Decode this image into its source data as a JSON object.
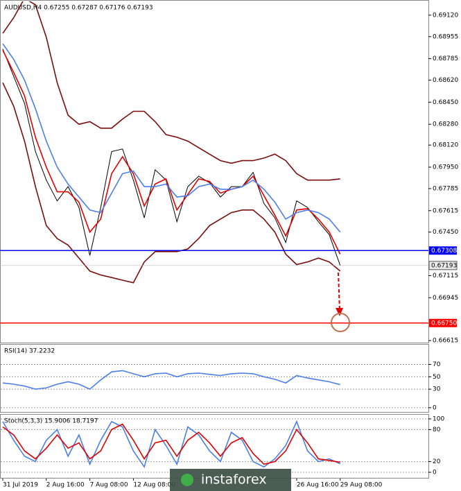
{
  "watermark": "instaforex",
  "chart_data": [
    {
      "type": "line",
      "title": "AUDUSD,H4 0.67255 0.67287 0.67176 0.67193",
      "ylim": [
        0.66594,
        0.69226
      ],
      "yticks": [
        {
          "value": 0.6912,
          "label": "0.69120"
        },
        {
          "value": 0.68955,
          "label": "0.68955"
        },
        {
          "value": 0.68785,
          "label": "0.68785"
        },
        {
          "value": 0.6862,
          "label": "0.68620"
        },
        {
          "value": 0.6845,
          "label": "0.68450"
        },
        {
          "value": 0.6828,
          "label": "0.68280"
        },
        {
          "value": 0.6812,
          "label": "0.68120"
        },
        {
          "value": 0.6795,
          "label": "0.67950"
        },
        {
          "value": 0.67785,
          "label": "0.67785"
        },
        {
          "value": 0.67615,
          "label": "0.67615"
        },
        {
          "value": 0.6745,
          "label": "0.67450"
        },
        {
          "value": 0.67115,
          "label": "0.67115"
        },
        {
          "value": 0.66945,
          "label": "0.66945"
        },
        {
          "value": 0.66615,
          "label": "0.66615"
        }
      ],
      "grid": false,
      "levels": [
        {
          "value": 0.67308,
          "color": "#0000ff"
        },
        {
          "value": 0.6675,
          "label": "0.66750",
          "color": "#ff0000"
        }
      ],
      "current_price": 0.67193,
      "series": [
        {
          "color": "#000000",
          "values": [
            0.6886,
            0.6865,
            0.6844,
            0.6807,
            0.6785,
            0.6769,
            0.678,
            0.6764,
            0.6727,
            0.6764,
            0.6807,
            0.6809,
            0.6785,
            0.6756,
            0.6793,
            0.6785,
            0.6753,
            0.678,
            0.6788,
            0.6783,
            0.6772,
            0.678,
            0.678,
            0.6791,
            0.6767,
            0.6756,
            0.6737,
            0.6769,
            0.6764,
            0.6753,
            0.6743,
            0.67193
          ]
        },
        {
          "color": "#e00000",
          "values": [
            0.6885,
            0.6868,
            0.685,
            0.6818,
            0.6795,
            0.6776,
            0.6776,
            0.6768,
            0.6745,
            0.6755,
            0.679,
            0.6803,
            0.679,
            0.6765,
            0.6782,
            0.6786,
            0.6762,
            0.6774,
            0.6786,
            0.6784,
            0.6775,
            0.6778,
            0.678,
            0.6788,
            0.6773,
            0.6758,
            0.6742,
            0.6762,
            0.6763,
            0.6755,
            0.6745,
            0.6728
          ]
        },
        {
          "color": "#4a7ee8",
          "values": [
            0.689,
            0.6878,
            0.6862,
            0.684,
            0.6815,
            0.6795,
            0.6782,
            0.6772,
            0.6762,
            0.676,
            0.6775,
            0.679,
            0.6792,
            0.678,
            0.678,
            0.6782,
            0.6772,
            0.6773,
            0.678,
            0.6782,
            0.6778,
            0.6778,
            0.678,
            0.6785,
            0.6778,
            0.6768,
            0.6755,
            0.676,
            0.6762,
            0.676,
            0.6755,
            0.6745
          ]
        },
        {
          "color": "#7a0c0c",
          "values": [
            0.6898,
            0.691,
            0.6925,
            0.692,
            0.6895,
            0.686,
            0.6835,
            0.6828,
            0.683,
            0.6825,
            0.6825,
            0.6832,
            0.6838,
            0.6838,
            0.683,
            0.682,
            0.6818,
            0.6815,
            0.681,
            0.6805,
            0.68,
            0.6798,
            0.68,
            0.68,
            0.6802,
            0.6805,
            0.68,
            0.679,
            0.6785,
            0.6785,
            0.6785,
            0.6786
          ]
        },
        {
          "color": "#7a0c0c",
          "values": [
            0.686,
            0.6842,
            0.6815,
            0.678,
            0.675,
            0.674,
            0.6735,
            0.6725,
            0.6715,
            0.6712,
            0.671,
            0.6708,
            0.6706,
            0.6722,
            0.673,
            0.673,
            0.673,
            0.6732,
            0.674,
            0.675,
            0.6755,
            0.676,
            0.6762,
            0.6762,
            0.6755,
            0.6745,
            0.6728,
            0.672,
            0.6722,
            0.6725,
            0.6722,
            0.6715
          ]
        }
      ]
    },
    {
      "type": "line",
      "title": "RSI(14) 37.2232",
      "ylim": [
        -8,
        102
      ],
      "yticks": [
        70,
        50,
        30,
        0
      ],
      "grid": true,
      "series": [
        {
          "color": "#4a7ee8",
          "values": [
            40,
            38,
            35,
            30,
            32,
            38,
            42,
            38,
            30,
            45,
            58,
            60,
            55,
            50,
            55,
            56,
            50,
            55,
            56,
            54,
            52,
            55,
            56,
            55,
            50,
            46,
            40,
            52,
            48,
            45,
            42,
            37.2232
          ]
        }
      ]
    },
    {
      "type": "line",
      "title": "Stoch(5,3,3) 15.9006 18.7197",
      "ylim": [
        -11.7,
        107.8
      ],
      "yticks": [
        100,
        80,
        20,
        0
      ],
      "grid": true,
      "categories": [
        "31 Jul 2019",
        null,
        null,
        null,
        "2 Aug 16:00",
        null,
        null,
        null,
        "7 Aug 08:00",
        null,
        null,
        null,
        "12 Aug 08:00",
        null,
        null,
        null,
        null,
        null,
        null,
        null,
        null,
        null,
        null,
        null,
        null,
        null,
        null,
        "26 Aug 16:00",
        null,
        null,
        null,
        "29 Aug 08:00"
      ],
      "series": [
        {
          "color": "#4a7ee8",
          "values": [
            95,
            60,
            30,
            20,
            60,
            80,
            30,
            70,
            15,
            60,
            95,
            85,
            40,
            10,
            80,
            50,
            15,
            85,
            70,
            40,
            20,
            75,
            60,
            20,
            10,
            25,
            50,
            95,
            40,
            20,
            25,
            15.9006
          ]
        },
        {
          "color": "#e00000",
          "values": [
            85,
            70,
            40,
            25,
            45,
            70,
            45,
            55,
            25,
            40,
            80,
            90,
            60,
            25,
            55,
            60,
            30,
            60,
            75,
            55,
            30,
            55,
            65,
            35,
            15,
            20,
            40,
            80,
            55,
            25,
            22,
            18.7197
          ]
        }
      ]
    }
  ]
}
